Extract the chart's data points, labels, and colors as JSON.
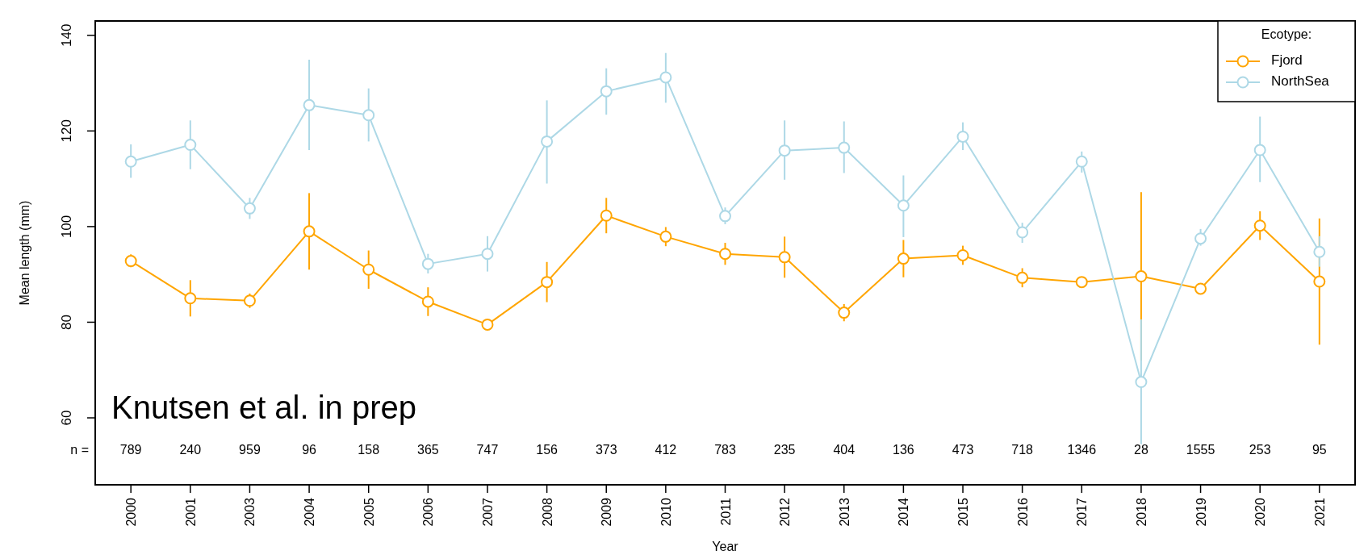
{
  "chart_data": {
    "type": "line",
    "xlabel": "Year",
    "ylabel": "Mean length (mm)",
    "legend_title": "Ecotype:",
    "legend": "top right",
    "marker": "circle",
    "grid": false,
    "categories": [
      "2000",
      "2001",
      "2003",
      "2004",
      "2005",
      "2006",
      "2007",
      "2008",
      "2009",
      "2010",
      "2011",
      "2012",
      "2013",
      "2014",
      "2015",
      "2016",
      "2017",
      "2018",
      "2019",
      "2020",
      "2021"
    ],
    "ylim": [
      46,
      143
    ],
    "yticks": [
      60,
      80,
      100,
      120,
      140
    ],
    "series": [
      {
        "name": "Fjord",
        "color": "#ffa500",
        "values": [
          92.8,
          85.0,
          84.5,
          99.0,
          91.0,
          84.3,
          79.5,
          88.4,
          102.3,
          97.9,
          94.3,
          93.6,
          82.0,
          93.3,
          94.0,
          89.3,
          88.4,
          89.6,
          87.0,
          100.2,
          88.5
        ],
        "errors": [
          [
            91.5,
            94.2
          ],
          [
            81.2,
            88.8
          ],
          [
            83.0,
            86.0
          ],
          [
            91.0,
            107.0
          ],
          [
            87.0,
            95.0
          ],
          [
            81.3,
            87.3
          ],
          [
            78.5,
            80.5
          ],
          [
            84.2,
            92.6
          ],
          [
            98.6,
            106.0
          ],
          [
            95.9,
            99.9
          ],
          [
            92.0,
            96.6
          ],
          [
            89.3,
            97.9
          ],
          [
            80.2,
            83.8
          ],
          [
            89.4,
            97.2
          ],
          [
            92.0,
            96.0
          ],
          [
            87.3,
            91.3
          ],
          [
            87.4,
            89.4
          ],
          [
            72.0,
            107.2
          ],
          [
            86.2,
            87.8
          ],
          [
            97.2,
            103.2
          ],
          [
            75.3,
            101.7
          ]
        ]
      },
      {
        "name": "NorthSea",
        "color": "#add8e6",
        "values": [
          113.6,
          117.1,
          103.8,
          125.4,
          123.3,
          92.2,
          94.3,
          117.8,
          128.3,
          131.2,
          102.2,
          115.9,
          116.5,
          104.4,
          118.8,
          98.8,
          113.6,
          67.5,
          97.5,
          116.0,
          94.7
        ],
        "errors": [
          [
            110.2,
            117.2
          ],
          [
            112.0,
            122.2
          ],
          [
            101.6,
            106.0
          ],
          [
            116.0,
            134.9
          ],
          [
            117.8,
            128.9
          ],
          [
            90.2,
            94.3
          ],
          [
            90.6,
            98.0
          ],
          [
            109.0,
            126.4
          ],
          [
            123.4,
            133.1
          ],
          [
            125.9,
            136.3
          ],
          [
            100.5,
            104.0
          ],
          [
            109.8,
            122.2
          ],
          [
            111.2,
            122.0
          ],
          [
            97.8,
            110.7
          ],
          [
            116.0,
            121.8
          ],
          [
            96.6,
            100.8
          ],
          [
            111.3,
            115.7
          ],
          [
            54.5,
            80.6
          ],
          [
            96.0,
            99.5
          ],
          [
            109.3,
            123.0
          ],
          [
            91.6,
            98.0
          ]
        ]
      }
    ],
    "annotations": [
      "Knutsen et al. in prep",
      "n =",
      "789",
      "240",
      "959",
      "96",
      "158",
      "365",
      "747",
      "156",
      "373",
      "412",
      "783",
      "235",
      "404",
      "136",
      "473",
      "718",
      "1346",
      "28",
      "1555",
      "253",
      "95"
    ]
  }
}
